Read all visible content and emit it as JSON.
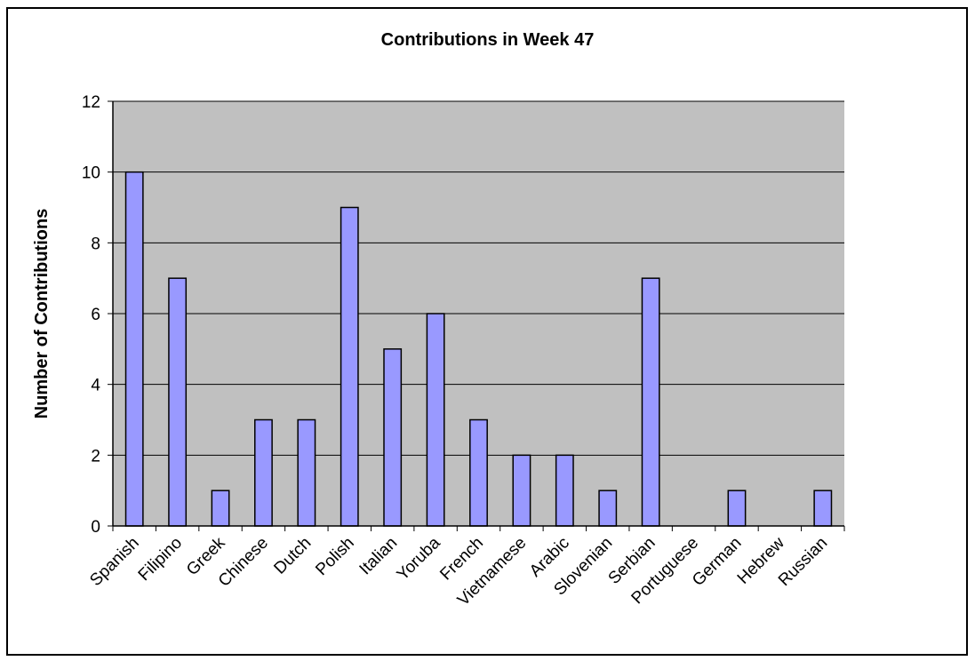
{
  "chart_data": {
    "type": "bar",
    "title": "Contributions in Week 47",
    "xlabel": "",
    "ylabel": "Number of Contributions",
    "categories": [
      "Spanish",
      "Filipino",
      "Greek",
      "Chinese",
      "Dutch",
      "Polish",
      "Italian",
      "Yoruba",
      "French",
      "Vietnamese",
      "Arabic",
      "Slovenian",
      "Serbian",
      "Portuguese",
      "German",
      "Hebrew",
      "Russian"
    ],
    "values": [
      10,
      7,
      1,
      3,
      3,
      9,
      5,
      6,
      3,
      2,
      2,
      1,
      7,
      0,
      1,
      0,
      1
    ],
    "ylim": [
      0,
      12
    ],
    "yticks": [
      0,
      2,
      4,
      6,
      8,
      10,
      12
    ],
    "grid": true,
    "legend": "none",
    "colors": {
      "bar_fill": "#9999ff",
      "plot_background": "#c0c0c0",
      "gridline": "#000000"
    }
  }
}
